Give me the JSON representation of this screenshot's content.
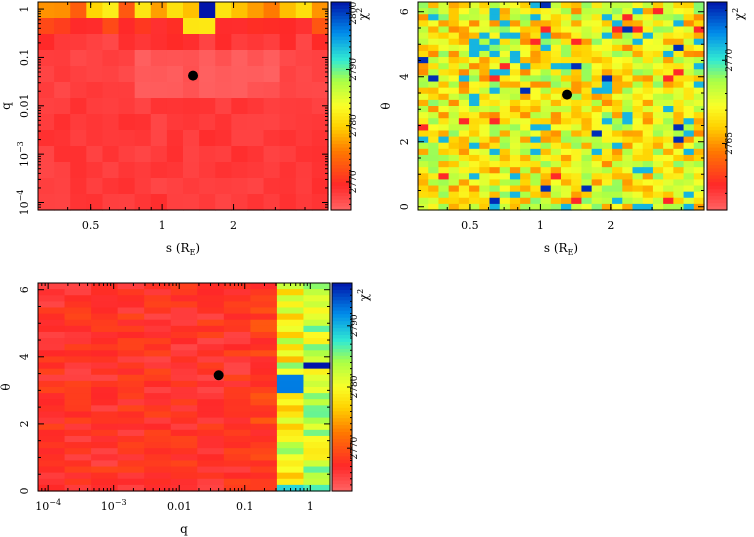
{
  "chart_data": [
    {
      "type": "heatmap",
      "id": "s-q",
      "xlabel": "s (R",
      "xlabel_sub": "E",
      "xlabel_close": ")",
      "ylabel": "q",
      "xscale": "log",
      "yscale": "log",
      "xlim": [
        0.3,
        5.0
      ],
      "ylim": [
        7e-05,
        1.4
      ],
      "xticks": [
        {
          "v": 0.5,
          "label": "0.5"
        },
        {
          "v": 1,
          "label": "1"
        },
        {
          "v": 2,
          "label": "2"
        }
      ],
      "yticks": [
        {
          "v": 0.0001,
          "base": "10",
          "exp": "−4"
        },
        {
          "v": 0.001,
          "base": "10",
          "exp": "−3"
        },
        {
          "v": 0.01,
          "label": "0.01"
        },
        {
          "v": 0.1,
          "label": "0.1"
        },
        {
          "v": 1,
          "label": "1"
        }
      ],
      "grid_cols": 18,
      "grid_rows": 13,
      "colorbar": {
        "label": "χ",
        "sup": "2",
        "min": 2765,
        "max": 2802,
        "ticks": [
          {
            "v": 2770,
            "label": "2770"
          },
          {
            "v": 2780,
            "label": "2780"
          },
          {
            "v": 2790,
            "label": "2790"
          },
          {
            "v": 2800,
            "label": "2800"
          }
        ]
      },
      "best_fit": {
        "x": 1.35,
        "y": 0.042
      }
    },
    {
      "type": "heatmap",
      "id": "s-theta",
      "xlabel": "s (R",
      "xlabel_sub": "E",
      "xlabel_close": ")",
      "ylabel": "θ",
      "xscale": "log",
      "yscale": "linear",
      "xlim": [
        0.3,
        5.0
      ],
      "ylim": [
        -0.1,
        6.3
      ],
      "xticks": [
        {
          "v": 0.5,
          "label": "0.5"
        },
        {
          "v": 1,
          "label": "1"
        },
        {
          "v": 2,
          "label": "2"
        }
      ],
      "yticks": [
        {
          "v": 0,
          "label": "0"
        },
        {
          "v": 2,
          "label": "2"
        },
        {
          "v": 4,
          "label": "4"
        },
        {
          "v": 6,
          "label": "6"
        }
      ],
      "grid_cols": 28,
      "grid_rows": 34,
      "colorbar": {
        "label": "χ",
        "sup": "2",
        "min": 2761,
        "max": 2773.5,
        "ticks": [
          {
            "v": 2765,
            "label": "2765"
          },
          {
            "v": 2770,
            "label": "2770"
          }
        ]
      },
      "best_fit": {
        "x": 1.3,
        "y": 3.45
      }
    },
    {
      "type": "heatmap",
      "id": "q-theta",
      "xlabel": "q",
      "ylabel": "θ",
      "xscale": "log",
      "yscale": "linear",
      "xlim": [
        7e-05,
        2.0
      ],
      "ylim": [
        0.0,
        6.2
      ],
      "xticks": [
        {
          "v": 0.0001,
          "base": "10",
          "exp": "−4"
        },
        {
          "v": 0.001,
          "base": "10",
          "exp": "−3"
        },
        {
          "v": 0.01,
          "label": "0.01"
        },
        {
          "v": 0.1,
          "label": "0.1"
        },
        {
          "v": 1,
          "label": "1"
        }
      ],
      "yticks": [
        {
          "v": 0,
          "label": "0"
        },
        {
          "v": 2,
          "label": "2"
        },
        {
          "v": 4,
          "label": "4"
        },
        {
          "v": 6,
          "label": "6"
        }
      ],
      "grid_cols": 11,
      "grid_rows": 34,
      "colorbar": {
        "label": "χ",
        "sup": "2",
        "min": 2763,
        "max": 2797,
        "ticks": [
          {
            "v": 2770,
            "label": "2770"
          },
          {
            "v": 2780,
            "label": "2780"
          },
          {
            "v": 2790,
            "label": "2790"
          }
        ]
      },
      "best_fit": {
        "x": 0.04,
        "y": 3.45
      }
    }
  ]
}
